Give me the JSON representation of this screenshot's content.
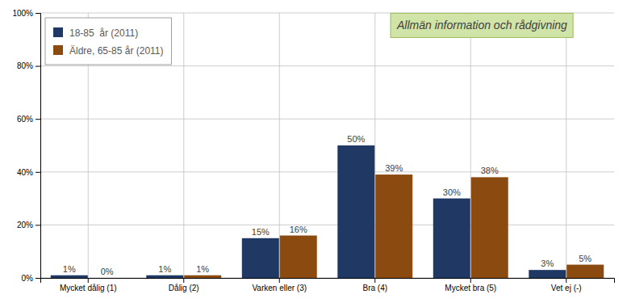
{
  "chart_data": {
    "type": "bar",
    "categories": [
      "Mycket dålig (1)",
      "Dålig (2)",
      "Varken eller (3)",
      "Bra (4)",
      "Mycket bra (5)",
      "Vet ej (-)"
    ],
    "series": [
      {
        "name": "18-85  år (2011)",
        "color": "#1F3864",
        "values": [
          1,
          1,
          15,
          50,
          30,
          3
        ],
        "value_labels": [
          "1%",
          "1%",
          "15%",
          "50%",
          "30%",
          "3%"
        ]
      },
      {
        "name": "Äldre, 65-85 år (2011)",
        "color": "#8B4A10",
        "values": [
          0,
          1,
          16,
          39,
          38,
          5
        ],
        "value_labels": [
          "0%",
          "1%",
          "16%",
          "39%",
          "38%",
          "5%"
        ]
      }
    ],
    "ylim": [
      0,
      100
    ],
    "yticks": [
      {
        "value": 0,
        "label": "0%"
      },
      {
        "value": 20,
        "label": "20%"
      },
      {
        "value": 40,
        "label": "40%"
      },
      {
        "value": 60,
        "label": "60%"
      },
      {
        "value": 80,
        "label": "80%"
      },
      {
        "value": 100,
        "label": "100%"
      }
    ],
    "grid": true,
    "legend": "upper left",
    "data_labels": true,
    "annotation": "Allmän information och rådgivning"
  }
}
